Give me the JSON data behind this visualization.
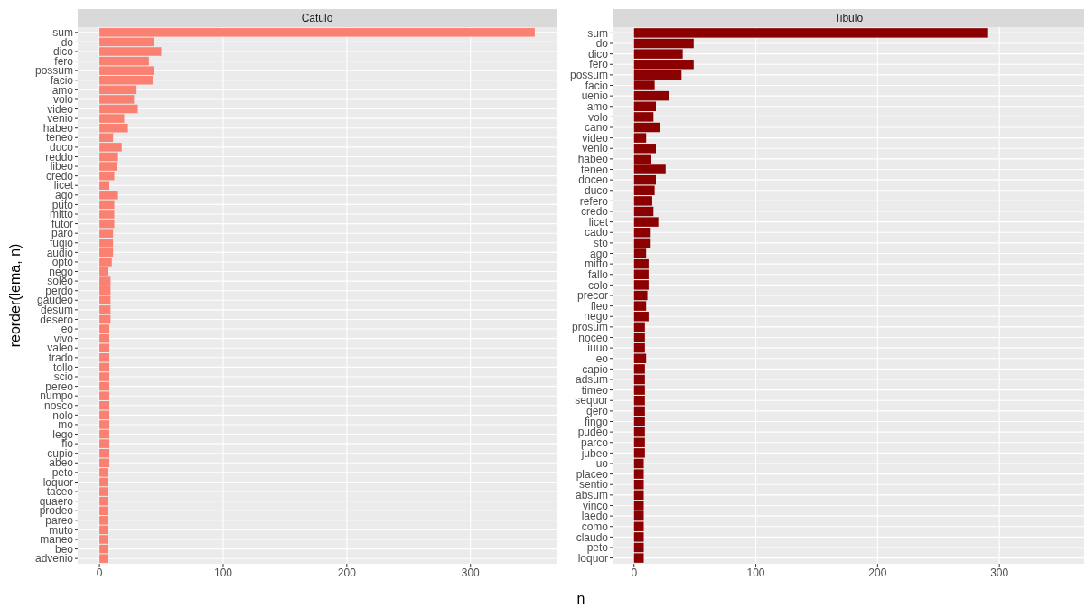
{
  "chart_data": [
    {
      "type": "bar",
      "orientation": "horizontal",
      "title": "Catulo",
      "ylabel": "reorder(lema, n)",
      "color": "#fa8072",
      "grid": true,
      "xlim": [
        -17.6,
        369.6
      ],
      "xticks": [
        0,
        100,
        200,
        300
      ],
      "categories": [
        "sum",
        "do",
        "dico",
        "fero",
        "possum",
        "facio",
        "amo",
        "volo",
        "video",
        "venio",
        "habeo",
        "teneo",
        "duco",
        "reddo",
        "libeo",
        "credo",
        "licet",
        "ago",
        "puto",
        "mitto",
        "futor",
        "paro",
        "fugio",
        "audio",
        "opto",
        "nego",
        "soleo",
        "perdo",
        "gaudeo",
        "desum",
        "desero",
        "eo",
        "vivo",
        "valeo",
        "trado",
        "tollo",
        "scio",
        "pereo",
        "numpo",
        "nosco",
        "nolo",
        "mo",
        "lego",
        "fio",
        "cupio",
        "abeo",
        "peto",
        "loquor",
        "taceo",
        "quaero",
        "prodeo",
        "pareo",
        "muto",
        "maneo",
        "beo",
        "advenio"
      ],
      "values": [
        352,
        44,
        50,
        40,
        44,
        43,
        30,
        28,
        31,
        20,
        23,
        11,
        18,
        15,
        14,
        12,
        8,
        15,
        12,
        12,
        12,
        11,
        11,
        11,
        10,
        7,
        9,
        9,
        9,
        9,
        9,
        8,
        8,
        8,
        8,
        8,
        8,
        8,
        8,
        8,
        8,
        8,
        8,
        8,
        8,
        8,
        7,
        7,
        7,
        7,
        7,
        7,
        7,
        7,
        7,
        7
      ]
    },
    {
      "type": "bar",
      "orientation": "horizontal",
      "title": "Tibulo",
      "xlabel": "n",
      "color": "#8b0000",
      "grid": true,
      "xlim": [
        -17.6,
        369.6
      ],
      "xticks": [
        0,
        100,
        200,
        300
      ],
      "categories": [
        "sum",
        "do",
        "dico",
        "fero",
        "possum",
        "facio",
        "uenio",
        "amo",
        "volo",
        "cano",
        "video",
        "venio",
        "habeo",
        "teneo",
        "doceo",
        "duco",
        "refero",
        "credo",
        "licet",
        "cado",
        "sto",
        "ago",
        "mitto",
        "fallo",
        "colo",
        "precor",
        "fleo",
        "nego",
        "prosum",
        "noceo",
        "iuuo",
        "eo",
        "capio",
        "adsum",
        "timeo",
        "sequor",
        "gero",
        "fingo",
        "pudeo",
        "parco",
        "jubeo",
        "uo",
        "placeo",
        "sentio",
        "absum",
        "vinco",
        "laedo",
        "como",
        "claudo",
        "peto",
        "loquor"
      ],
      "values": [
        290,
        49,
        40,
        49,
        39,
        17,
        29,
        18,
        16,
        21,
        10,
        18,
        14,
        26,
        18,
        17,
        15,
        16,
        20,
        13,
        13,
        10,
        12,
        12,
        12,
        11,
        10,
        12,
        9,
        9,
        9,
        10,
        9,
        9,
        9,
        9,
        9,
        9,
        9,
        9,
        9,
        8,
        8,
        8,
        8,
        8,
        8,
        8,
        8,
        8,
        8
      ]
    }
  ]
}
